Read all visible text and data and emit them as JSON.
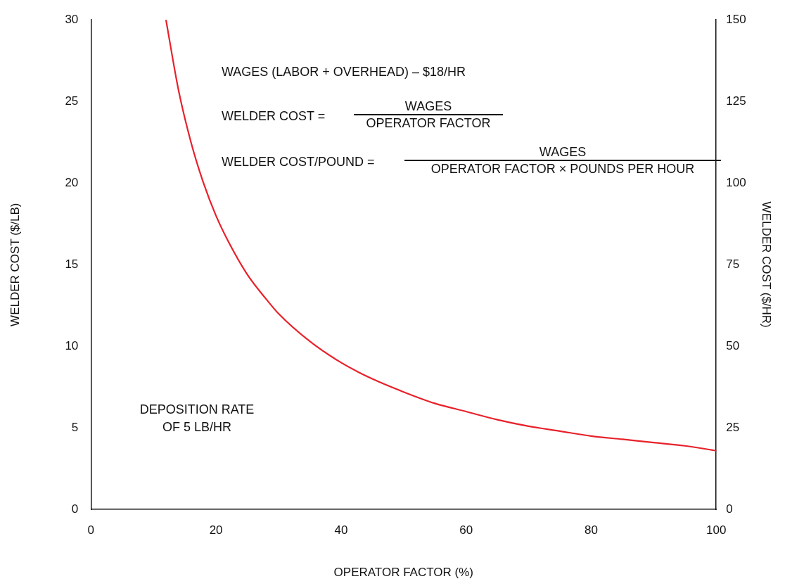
{
  "chart_data": {
    "type": "line",
    "xlabel": "OPERATOR FACTOR (%)",
    "ylabel": "WELDER COST ($/LB)",
    "y2label": "WELDER COST ($/HR)",
    "x": [
      12,
      14,
      16,
      18,
      20,
      22,
      25,
      28,
      30,
      35,
      40,
      45,
      50,
      55,
      60,
      65,
      70,
      75,
      80,
      85,
      90,
      95,
      100
    ],
    "series": [
      {
        "color": "#e8212a",
        "values": [
          30,
          25.7,
          22.5,
          20,
          18,
          16.4,
          14.4,
          12.9,
          12,
          10.3,
          9,
          8,
          7.2,
          6.5,
          6,
          5.5,
          5.1,
          4.8,
          4.5,
          4.3,
          4.1,
          3.9,
          3.6
        ]
      }
    ],
    "xlim": [
      0,
      100
    ],
    "xticks": [
      0,
      20,
      40,
      60,
      80,
      100
    ],
    "ylim": [
      0,
      30
    ],
    "yticks": [
      0,
      5,
      10,
      15,
      20,
      25,
      30
    ],
    "y2lim": [
      0,
      150
    ],
    "y2ticks": [
      0,
      25,
      50,
      75,
      100,
      125,
      150
    ],
    "annotations": [
      "WAGES (LABOR + OVERHEAD) – $18/HR",
      "WELDER COST =",
      "WAGES",
      "OPERATOR FACTOR",
      "WELDER COST/POUND =",
      "WAGES",
      "OPERATOR FACTOR × POUNDS PER HOUR",
      "DEPOSITION RATE OF 5 LB/HR"
    ],
    "grid": false,
    "legend": false,
    "marker": "none",
    "line_style": "solid"
  }
}
